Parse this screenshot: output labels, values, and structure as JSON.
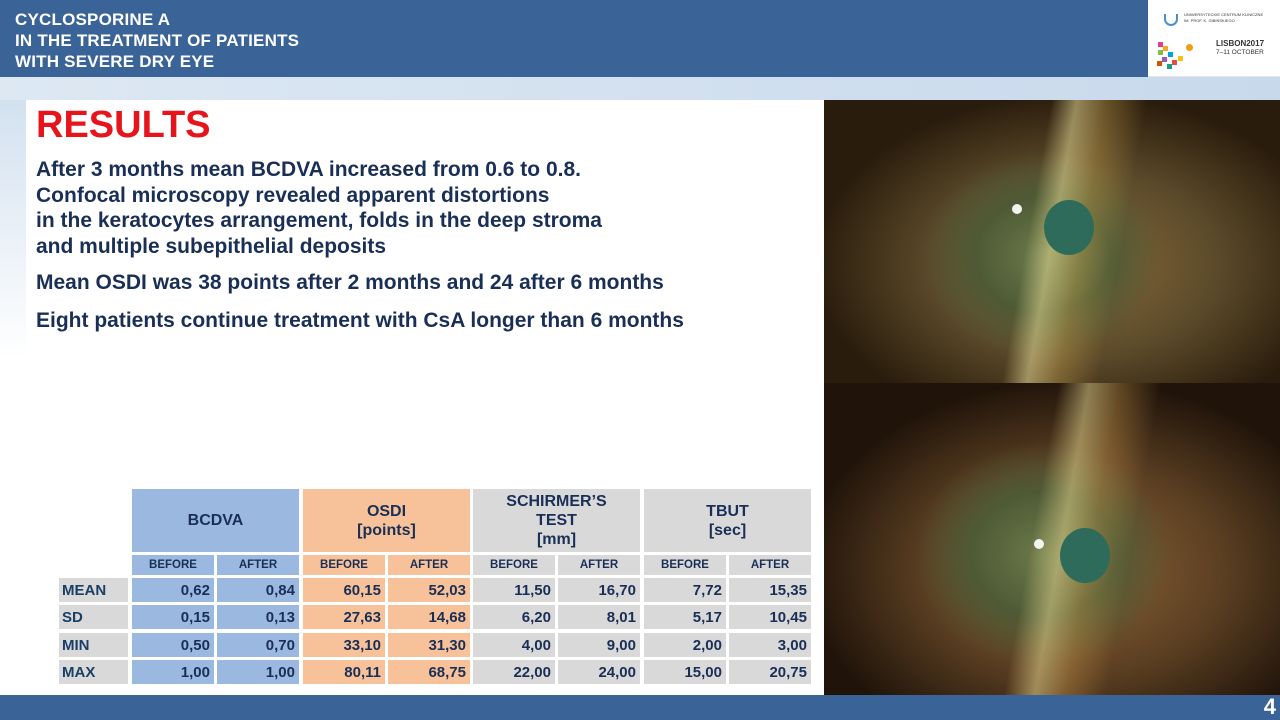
{
  "header": {
    "title_lines": [
      "CYCLOSPORINE A",
      "IN THE TREATMENT OF PATIENTS",
      "WITH SEVERE DRY EYE"
    ]
  },
  "logo": {
    "line1": "UNIWERSYTECKIE CENTRUM KLINICZNE",
    "line2": "IM. PROF. K. GIBIŃSKIEGO",
    "lisbon": "LISBON2017",
    "dates": "7–11 OCTOBER"
  },
  "results_title": "RESULTS",
  "paragraphs": [
    "After 3 months mean BCDVA increased from 0.6 to 0.8.",
    "Confocal microscopy revealed apparent distortions",
    "in the keratocytes arrangement, folds in the deep stroma",
    "and multiple subepithelial deposits"
  ],
  "para2": "Mean OSDI was 38 points after 2 months and 24 after 6 months",
  "para3": "Eight patients continue treatment with CsA longer than 6 months",
  "table": {
    "groups": [
      {
        "lines": [
          "BCDVA"
        ],
        "color": "#9bb9e0"
      },
      {
        "lines": [
          "OSDI",
          "[points]"
        ],
        "color": "#f7c29a"
      },
      {
        "lines": [
          "SCHIRMER’S",
          "TEST",
          "[mm]"
        ],
        "color": "#d9d9d9"
      },
      {
        "lines": [
          "TBUT",
          "[sec]"
        ],
        "color": "#d9d9d9"
      }
    ],
    "subheaders": [
      "BEFORE",
      "AFTER",
      "BEFORE",
      "AFTER",
      "BEFORE",
      "AFTER",
      "BEFORE",
      "AFTER"
    ],
    "rows": [
      {
        "label": "MEAN",
        "values": [
          "0,62",
          "0,84",
          "60,15",
          "52,03",
          "11,50",
          "16,70",
          "7,72",
          "15,35"
        ]
      },
      {
        "label": "SD",
        "values": [
          "0,15",
          "0,13",
          "27,63",
          "14,68",
          "6,20",
          "8,01",
          "5,17",
          "10,45"
        ]
      },
      {
        "label": "MIN",
        "values": [
          "0,50",
          "0,70",
          "33,10",
          "31,30",
          "4,00",
          "9,00",
          "2,00",
          "3,00"
        ]
      },
      {
        "label": "MAX",
        "values": [
          "1,00",
          "1,00",
          "80,11",
          "68,75",
          "22,00",
          "24,00",
          "15,00",
          "20,75"
        ]
      }
    ]
  },
  "page_number": "4",
  "colors": {
    "header_bg": "#3a6398",
    "results_red": "#e8141b",
    "text_navy": "#1a2f56",
    "bcdva_blue": "#9bb9e0",
    "osdi_orange": "#f7c29a",
    "grey": "#d9d9d9"
  }
}
